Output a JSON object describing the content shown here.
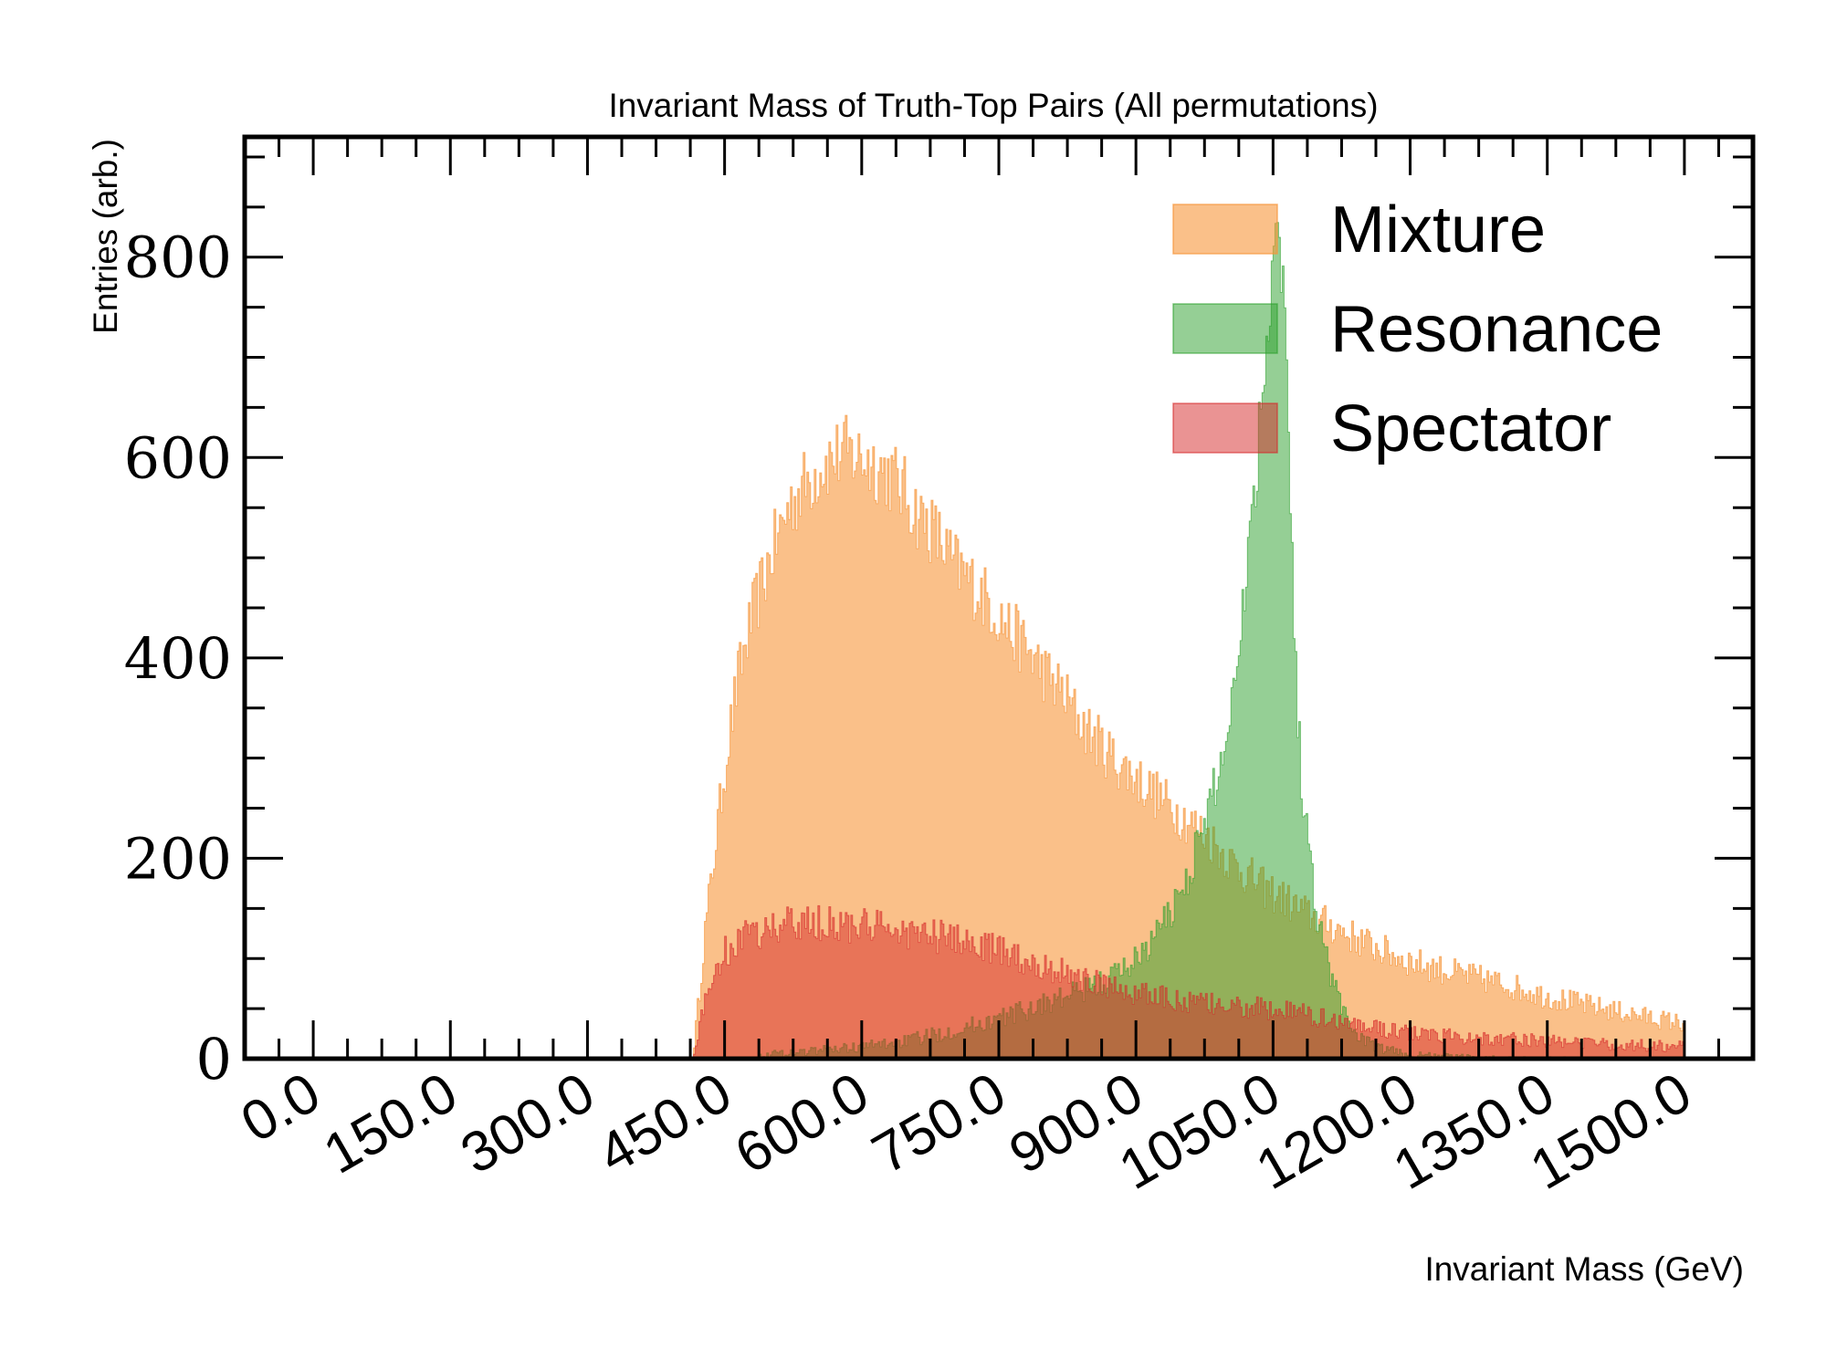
{
  "chart_data": {
    "type": "histogram",
    "title": "Invariant Mass of Truth-Top Pairs (All permutations)",
    "xlabel": "Invariant Mass (GeV)",
    "ylabel": "Entries (arb.)",
    "xlim": [
      -75,
      1575
    ],
    "ylim": [
      0,
      920
    ],
    "xticks": [
      0,
      150,
      300,
      450,
      600,
      750,
      900,
      1050,
      1200,
      1350,
      1500
    ],
    "xtick_labels": [
      "0.0",
      "150.0",
      "300.0",
      "450.0",
      "600.0",
      "750.0",
      "900.0",
      "1050.0",
      "1200.0",
      "1350.0",
      "1500.0"
    ],
    "yticks": [
      0,
      200,
      400,
      600,
      800
    ],
    "ytick_labels": [
      "0",
      "200",
      "400",
      "600",
      "800"
    ],
    "legend_position": "top-right",
    "grid": false,
    "series": [
      {
        "name": "Mixture",
        "color": "#f7963a",
        "opacity": 0.6,
        "points": [
          [
            0,
            0
          ],
          [
            415,
            0
          ],
          [
            420,
            40
          ],
          [
            428,
            120
          ],
          [
            436,
            180
          ],
          [
            445,
            250
          ],
          [
            455,
            320
          ],
          [
            465,
            380
          ],
          [
            480,
            440
          ],
          [
            500,
            500
          ],
          [
            520,
            550
          ],
          [
            540,
            575
          ],
          [
            560,
            595
          ],
          [
            580,
            605
          ],
          [
            600,
            600
          ],
          [
            620,
            590
          ],
          [
            640,
            575
          ],
          [
            660,
            545
          ],
          [
            680,
            525
          ],
          [
            700,
            495
          ],
          [
            720,
            475
          ],
          [
            740,
            455
          ],
          [
            760,
            430
          ],
          [
            780,
            410
          ],
          [
            800,
            385
          ],
          [
            820,
            365
          ],
          [
            840,
            335
          ],
          [
            860,
            315
          ],
          [
            880,
            295
          ],
          [
            900,
            280
          ],
          [
            920,
            265
          ],
          [
            940,
            250
          ],
          [
            960,
            235
          ],
          [
            980,
            220
          ],
          [
            1000,
            200
          ],
          [
            1020,
            185
          ],
          [
            1040,
            170
          ],
          [
            1060,
            160
          ],
          [
            1080,
            148
          ],
          [
            1100,
            138
          ],
          [
            1120,
            130
          ],
          [
            1140,
            120
          ],
          [
            1160,
            112
          ],
          [
            1180,
            104
          ],
          [
            1200,
            97
          ],
          [
            1250,
            85
          ],
          [
            1300,
            75
          ],
          [
            1350,
            62
          ],
          [
            1400,
            52
          ],
          [
            1450,
            43
          ],
          [
            1500,
            35
          ],
          [
            1500,
            0
          ]
        ]
      },
      {
        "name": "Resonance",
        "color": "#2ca02c",
        "opacity": 0.5,
        "points": [
          [
            0,
            0
          ],
          [
            480,
            0
          ],
          [
            500,
            5
          ],
          [
            550,
            8
          ],
          [
            600,
            12
          ],
          [
            650,
            18
          ],
          [
            700,
            28
          ],
          [
            750,
            40
          ],
          [
            800,
            55
          ],
          [
            850,
            70
          ],
          [
            880,
            85
          ],
          [
            900,
            100
          ],
          [
            920,
            120
          ],
          [
            940,
            150
          ],
          [
            960,
            190
          ],
          [
            980,
            250
          ],
          [
            1000,
            320
          ],
          [
            1010,
            400
          ],
          [
            1020,
            480
          ],
          [
            1030,
            570
          ],
          [
            1040,
            680
          ],
          [
            1045,
            750
          ],
          [
            1050,
            810
          ],
          [
            1055,
            840
          ],
          [
            1060,
            800
          ],
          [
            1065,
            680
          ],
          [
            1070,
            530
          ],
          [
            1075,
            390
          ],
          [
            1080,
            290
          ],
          [
            1090,
            200
          ],
          [
            1100,
            140
          ],
          [
            1110,
            95
          ],
          [
            1120,
            65
          ],
          [
            1130,
            42
          ],
          [
            1140,
            26
          ],
          [
            1160,
            12
          ],
          [
            1200,
            4
          ],
          [
            1300,
            1
          ],
          [
            1500,
            0
          ]
        ]
      },
      {
        "name": "Spectator",
        "color": "#d62728",
        "opacity": 0.5,
        "points": [
          [
            0,
            0
          ],
          [
            415,
            0
          ],
          [
            420,
            20
          ],
          [
            430,
            60
          ],
          [
            440,
            90
          ],
          [
            450,
            105
          ],
          [
            470,
            120
          ],
          [
            500,
            130
          ],
          [
            530,
            135
          ],
          [
            560,
            135
          ],
          [
            600,
            132
          ],
          [
            640,
            128
          ],
          [
            680,
            122
          ],
          [
            720,
            115
          ],
          [
            760,
            105
          ],
          [
            800,
            92
          ],
          [
            840,
            80
          ],
          [
            880,
            70
          ],
          [
            920,
            62
          ],
          [
            960,
            56
          ],
          [
            1000,
            52
          ],
          [
            1040,
            50
          ],
          [
            1080,
            45
          ],
          [
            1120,
            38
          ],
          [
            1160,
            31
          ],
          [
            1200,
            25
          ],
          [
            1300,
            20
          ],
          [
            1400,
            15
          ],
          [
            1500,
            12
          ],
          [
            1500,
            0
          ]
        ]
      }
    ]
  }
}
